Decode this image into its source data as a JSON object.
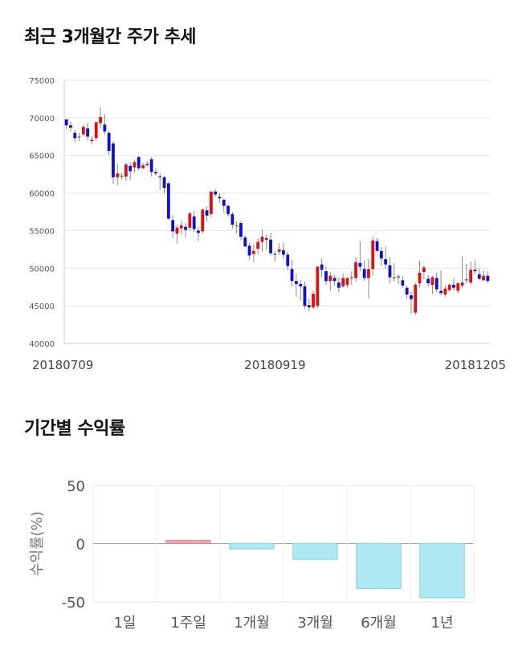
{
  "sections": {
    "price_title": "최근 3개월간 주가 추세",
    "return_title": "기간별 수익률"
  },
  "chart_data": [
    {
      "type": "candlestick",
      "title": "최근 3개월간 주가 추세",
      "ylim": [
        40000,
        75000
      ],
      "y_ticks": [
        75000,
        70000,
        65000,
        60000,
        55000,
        50000,
        45000,
        40000
      ],
      "x_tick_labels": [
        "20180709",
        "20180919",
        "20181205"
      ],
      "x_tick_index": [
        0,
        49,
        99
      ],
      "grid": true,
      "colors": {
        "up": "#dd1111",
        "down": "#1111cc",
        "wick": "#888888"
      },
      "candles": [
        [
          69800,
          69800,
          68500,
          69000
        ],
        [
          69000,
          69500,
          68200,
          68700
        ],
        [
          68000,
          68400,
          66800,
          67300
        ],
        [
          67400,
          68000,
          66900,
          67500
        ],
        [
          67800,
          69000,
          67500,
          68800
        ],
        [
          68600,
          69300,
          67000,
          67500
        ],
        [
          66900,
          67600,
          66500,
          67100
        ],
        [
          67300,
          69600,
          67000,
          69400
        ],
        [
          69300,
          71400,
          68600,
          70100
        ],
        [
          69100,
          70500,
          67800,
          68200
        ],
        [
          68000,
          68300,
          65000,
          65600
        ],
        [
          66600,
          66900,
          61200,
          62100
        ],
        [
          62100,
          63900,
          61000,
          62600
        ],
        [
          62300,
          62700,
          61800,
          62300
        ],
        [
          62200,
          64000,
          61600,
          63800
        ],
        [
          63600,
          64100,
          61800,
          62900
        ],
        [
          63400,
          64400,
          62700,
          64100
        ],
        [
          64800,
          64900,
          63000,
          63300
        ],
        [
          63300,
          64000,
          63200,
          63700
        ],
        [
          63700,
          64200,
          63500,
          63900
        ],
        [
          64500,
          64800,
          62200,
          62800
        ],
        [
          62800,
          63300,
          62300,
          62600
        ],
        [
          62200,
          62600,
          60400,
          62100
        ],
        [
          62100,
          62300,
          59900,
          60700
        ],
        [
          61300,
          61500,
          56400,
          56600
        ],
        [
          56400,
          57100,
          54100,
          54900
        ],
        [
          54600,
          55800,
          53300,
          55400
        ],
        [
          55300,
          56300,
          54500,
          55700
        ],
        [
          55500,
          56000,
          54100,
          55100
        ],
        [
          55400,
          57500,
          55000,
          57300
        ],
        [
          56900,
          57600,
          54800,
          55200
        ],
        [
          55000,
          55500,
          53600,
          54700
        ],
        [
          54900,
          57900,
          54600,
          57800
        ],
        [
          57700,
          58200,
          56200,
          57000
        ],
        [
          57200,
          60200,
          56800,
          60200
        ],
        [
          60200,
          60500,
          59600,
          59800
        ],
        [
          59500,
          60000,
          58700,
          59300
        ],
        [
          59100,
          59300,
          57400,
          58300
        ],
        [
          58300,
          58500,
          56900,
          57200
        ],
        [
          57200,
          57500,
          55300,
          55800
        ],
        [
          55600,
          56200,
          54600,
          55700
        ],
        [
          56000,
          56300,
          53700,
          54200
        ],
        [
          54100,
          54400,
          52800,
          52900
        ],
        [
          53000,
          53400,
          51100,
          51700
        ],
        [
          51900,
          53200,
          50800,
          52300
        ],
        [
          52600,
          54000,
          51900,
          53500
        ],
        [
          53500,
          55200,
          52200,
          54200
        ],
        [
          54000,
          54500,
          52500,
          53800
        ],
        [
          53800,
          54700,
          51700,
          52000
        ],
        [
          51900,
          52300,
          50900,
          51800
        ],
        [
          52200,
          53300,
          51800,
          52500
        ],
        [
          52400,
          53400,
          51200,
          51800
        ],
        [
          51800,
          52200,
          49700,
          50300
        ],
        [
          49900,
          51100,
          47600,
          48300
        ],
        [
          48300,
          49300,
          46200,
          47900
        ],
        [
          47900,
          48400,
          45700,
          47600
        ],
        [
          47600,
          48200,
          44600,
          45000
        ],
        [
          45100,
          45900,
          44300,
          44800
        ],
        [
          44800,
          47000,
          44600,
          46600
        ],
        [
          45000,
          50300,
          44700,
          50200
        ],
        [
          50500,
          51300,
          48800,
          49800
        ],
        [
          49600,
          50300,
          47800,
          48300
        ],
        [
          48300,
          49500,
          47000,
          49000
        ],
        [
          48700,
          49100,
          47700,
          48300
        ],
        [
          48100,
          48800,
          46800,
          47400
        ],
        [
          47600,
          49300,
          47400,
          48700
        ],
        [
          47800,
          48800,
          47400,
          48700
        ],
        [
          48700,
          49600,
          47800,
          48800
        ],
        [
          48700,
          51500,
          48200,
          50800
        ],
        [
          50700,
          53600,
          49600,
          50200
        ],
        [
          49900,
          51000,
          48300,
          48700
        ],
        [
          48700,
          51200,
          46000,
          49900
        ],
        [
          49900,
          54200,
          49000,
          53700
        ],
        [
          53600,
          54000,
          52200,
          52300
        ],
        [
          52300,
          52800,
          50300,
          51300
        ],
        [
          51200,
          52900,
          49900,
          50500
        ],
        [
          50400,
          51500,
          48000,
          48800
        ],
        [
          48800,
          50700,
          48300,
          48800
        ],
        [
          48900,
          49200,
          47900,
          48800
        ],
        [
          48400,
          49000,
          47400,
          47700
        ],
        [
          47400,
          47700,
          45900,
          46500
        ],
        [
          46400,
          46900,
          44000,
          45900
        ],
        [
          44100,
          48100,
          43800,
          47800
        ],
        [
          48000,
          51000,
          47400,
          49400
        ],
        [
          49500,
          50400,
          48600,
          50100
        ],
        [
          48600,
          49100,
          47600,
          48000
        ],
        [
          47800,
          49000,
          46600,
          48800
        ],
        [
          48700,
          49400,
          46800,
          47200
        ],
        [
          47000,
          49700,
          46400,
          46700
        ],
        [
          46500,
          47700,
          46200,
          47300
        ],
        [
          47100,
          47900,
          46900,
          47800
        ],
        [
          47800,
          48700,
          47000,
          47400
        ],
        [
          47000,
          48100,
          46700,
          48000
        ],
        [
          47700,
          51600,
          47400,
          48100
        ],
        [
          48500,
          50600,
          48000,
          48400
        ],
        [
          48100,
          50900,
          47800,
          49800
        ],
        [
          49800,
          51000,
          49300,
          49600
        ],
        [
          49200,
          50000,
          48400,
          48600
        ],
        [
          48400,
          49700,
          48300,
          49000
        ],
        [
          49000,
          49600,
          48000,
          48300
        ]
      ]
    },
    {
      "type": "bar",
      "title": "기간별 수익률",
      "ylabel": "수익률(%)",
      "categories": [
        "1일",
        "1주일",
        "1개월",
        "3개월",
        "6개월",
        "1년"
      ],
      "values": [
        0,
        2.8,
        -4.5,
        -13.5,
        -38.5,
        -46.5
      ],
      "ylim": [
        -50,
        50
      ],
      "y_ticks": [
        50,
        0,
        -50
      ],
      "grid": true,
      "colors": {
        "positive_fill": "#f4a6ad",
        "positive_edge": "#e8858e",
        "negative_fill": "#aee9f3",
        "negative_edge": "#7fcfdd"
      }
    }
  ]
}
